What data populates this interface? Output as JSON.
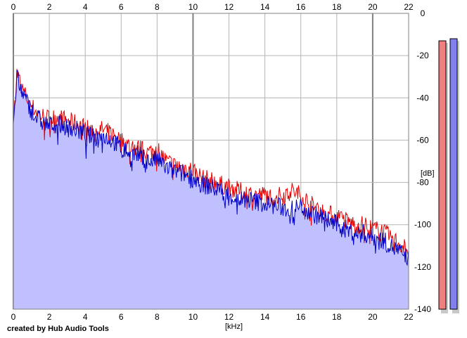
{
  "chart_data": {
    "type": "area",
    "xlabel": "[kHz]",
    "ylabel": "[dB]",
    "xlim": [
      0,
      22
    ],
    "ylim": [
      -140,
      0
    ],
    "x_ticks": [
      0,
      2,
      4,
      6,
      8,
      10,
      12,
      14,
      16,
      18,
      20,
      22
    ],
    "y_ticks": [
      0,
      -20,
      -40,
      -60,
      -80,
      -100,
      -120,
      -140
    ],
    "grid": true,
    "series": [
      {
        "color": "#e60000",
        "x": [
          0,
          0.2,
          0.5,
          1,
          1.5,
          2,
          2.5,
          3,
          3.5,
          4,
          4.5,
          5,
          5.5,
          6,
          6.5,
          7,
          7.5,
          8,
          8.5,
          9,
          9.5,
          10,
          10.5,
          11,
          11.5,
          12,
          12.5,
          13,
          13.5,
          14,
          14.5,
          15,
          15.5,
          16,
          16.5,
          17,
          17.5,
          18,
          18.5,
          19,
          19.5,
          20,
          20.5,
          21,
          21.5,
          22
        ],
        "y": [
          -50,
          -28,
          -36,
          -44,
          -48,
          -50,
          -49,
          -51,
          -52,
          -54,
          -56,
          -55,
          -57,
          -60,
          -63,
          -64,
          -66,
          -64,
          -70,
          -72,
          -73,
          -74,
          -78,
          -79,
          -81,
          -82,
          -84,
          -85,
          -86,
          -86,
          -87,
          -86,
          -84,
          -86,
          -90,
          -93,
          -95,
          -96,
          -98,
          -100,
          -100,
          -102,
          -103,
          -106,
          -109,
          -112
        ]
      },
      {
        "color": "#0000c8",
        "x": [
          0,
          0.2,
          0.5,
          1,
          1.5,
          2,
          2.5,
          3,
          3.5,
          4,
          4.5,
          5,
          5.5,
          6,
          6.5,
          7,
          7.5,
          8,
          8.5,
          9,
          9.5,
          10,
          10.5,
          11,
          11.5,
          12,
          12.5,
          13,
          13.5,
          14,
          14.5,
          15,
          15.5,
          16,
          16.5,
          17,
          17.5,
          18,
          18.5,
          19,
          19.5,
          20,
          20.5,
          21,
          21.5,
          22
        ],
        "y": [
          -52,
          -30,
          -38,
          -46,
          -51,
          -53,
          -52,
          -54,
          -55,
          -57,
          -59,
          -58,
          -60,
          -64,
          -66,
          -67,
          -70,
          -69,
          -73,
          -75,
          -76,
          -78,
          -81,
          -82,
          -84,
          -86,
          -88,
          -88,
          -89,
          -90,
          -91,
          -92,
          -93,
          -91,
          -94,
          -96,
          -98,
          -100,
          -102,
          -104,
          -104,
          -106,
          -107,
          -110,
          -113,
          -116
        ]
      }
    ],
    "level_meters": [
      {
        "color": "#f08080",
        "top_db": -13
      },
      {
        "color": "#8080f0",
        "top_db": -12
      }
    ]
  },
  "credit": "created by Hub Audio Tools"
}
